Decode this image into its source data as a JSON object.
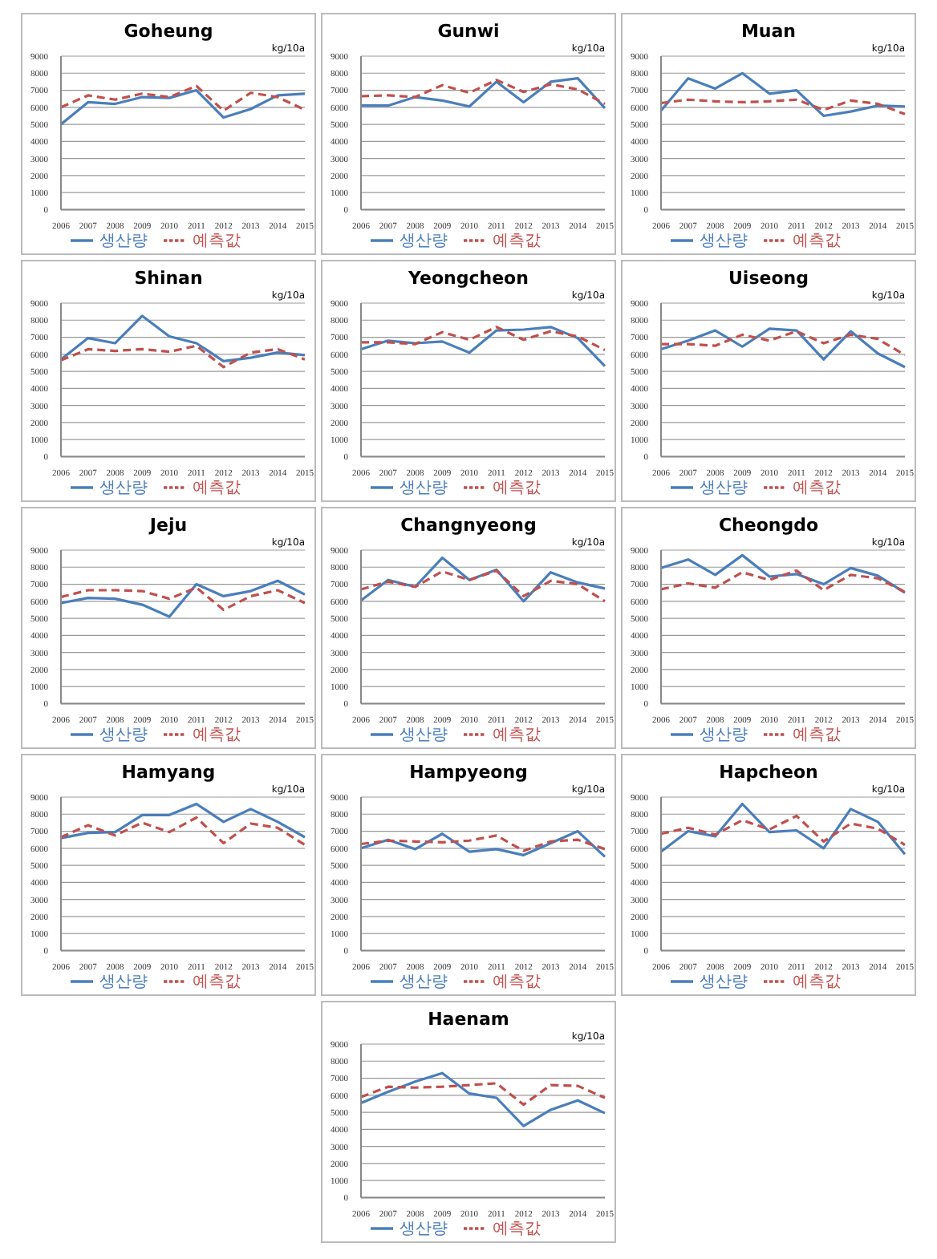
{
  "chart_data": [
    {
      "type": "line",
      "title": "Goheung",
      "categories": [
        "2006",
        "2007",
        "2008",
        "2009",
        "2010",
        "2011",
        "2012",
        "2013",
        "2014",
        "2015"
      ],
      "series": [
        {
          "name": "생산량",
          "color": "#4a7ebb",
          "line_style": "solid",
          "values": [
            5000,
            6300,
            6200,
            6600,
            6550,
            7000,
            5400,
            5900,
            6700,
            6800
          ]
        },
        {
          "name": "예측값",
          "color": "#c0504d",
          "line_style": "dashed",
          "values": [
            6000,
            6700,
            6450,
            6800,
            6600,
            7250,
            5800,
            6850,
            6600,
            5850
          ]
        }
      ],
      "annotations": [
        "kg/10a"
      ],
      "ylim": [
        0,
        9000
      ],
      "yticks": [
        0,
        1000,
        2000,
        3000,
        4000,
        5000,
        6000,
        7000,
        8000,
        9000
      ],
      "grid": "y",
      "legend": "bottom"
    },
    {
      "type": "line",
      "title": "Gunwi",
      "categories": [
        "2006",
        "2007",
        "2008",
        "2009",
        "2010",
        "2011",
        "2012",
        "2013",
        "2014",
        "2015"
      ],
      "series": [
        {
          "name": "생산량",
          "color": "#4a7ebb",
          "line_style": "solid",
          "values": [
            6100,
            6100,
            6600,
            6400,
            6050,
            7500,
            6300,
            7500,
            7700,
            5950
          ]
        },
        {
          "name": "예측값",
          "color": "#c0504d",
          "line_style": "dashed",
          "values": [
            6650,
            6700,
            6600,
            7300,
            6850,
            7600,
            6900,
            7350,
            7050,
            6200
          ]
        }
      ],
      "annotations": [
        "kg/10a"
      ],
      "ylim": [
        0,
        9000
      ],
      "yticks": [
        0,
        1000,
        2000,
        3000,
        4000,
        5000,
        6000,
        7000,
        8000,
        9000
      ],
      "grid": "y",
      "legend": "bottom"
    },
    {
      "type": "line",
      "title": "Muan",
      "categories": [
        "2006",
        "2007",
        "2008",
        "2009",
        "2010",
        "2011",
        "2012",
        "2013",
        "2014",
        "2015"
      ],
      "series": [
        {
          "name": "생산량",
          "color": "#4a7ebb",
          "line_style": "solid",
          "values": [
            5800,
            7700,
            7100,
            8000,
            6800,
            7000,
            5500,
            5750,
            6100,
            6050
          ]
        },
        {
          "name": "예측값",
          "color": "#c0504d",
          "line_style": "dashed",
          "values": [
            6250,
            6450,
            6350,
            6300,
            6350,
            6450,
            5850,
            6400,
            6200,
            5600
          ]
        }
      ],
      "annotations": [
        "kg/10a"
      ],
      "ylim": [
        0,
        9000
      ],
      "yticks": [
        0,
        1000,
        2000,
        3000,
        4000,
        5000,
        6000,
        7000,
        8000,
        9000
      ],
      "grid": "y",
      "legend": "bottom"
    },
    {
      "type": "line",
      "title": "Shinan",
      "categories": [
        "2006",
        "2007",
        "2008",
        "2009",
        "2010",
        "2011",
        "2012",
        "2013",
        "2014",
        "2015"
      ],
      "series": [
        {
          "name": "생산량",
          "color": "#4a7ebb",
          "line_style": "solid",
          "values": [
            5700,
            6950,
            6650,
            8250,
            7050,
            6650,
            5600,
            5800,
            6100,
            5950
          ]
        },
        {
          "name": "예측값",
          "color": "#c0504d",
          "line_style": "dashed",
          "values": [
            5650,
            6300,
            6200,
            6300,
            6150,
            6500,
            5250,
            6100,
            6300,
            5700
          ]
        }
      ],
      "annotations": [
        "kg/10a"
      ],
      "ylim": [
        0,
        9000
      ],
      "yticks": [
        0,
        1000,
        2000,
        3000,
        4000,
        5000,
        6000,
        7000,
        8000,
        9000
      ],
      "grid": "y",
      "legend": "bottom"
    },
    {
      "type": "line",
      "title": "Yeongcheon",
      "categories": [
        "2006",
        "2007",
        "2008",
        "2009",
        "2010",
        "2011",
        "2012",
        "2013",
        "2014",
        "2015"
      ],
      "series": [
        {
          "name": "생산량",
          "color": "#4a7ebb",
          "line_style": "solid",
          "values": [
            6300,
            6800,
            6650,
            6750,
            6100,
            7400,
            7450,
            7600,
            6950,
            5300
          ]
        },
        {
          "name": "예측값",
          "color": "#c0504d",
          "line_style": "dashed",
          "values": [
            6700,
            6700,
            6600,
            7300,
            6850,
            7600,
            6850,
            7350,
            7050,
            6250
          ]
        }
      ],
      "annotations": [
        "kg/10a"
      ],
      "ylim": [
        0,
        9000
      ],
      "yticks": [
        0,
        1000,
        2000,
        3000,
        4000,
        5000,
        6000,
        7000,
        8000,
        9000
      ],
      "grid": "y",
      "legend": "bottom"
    },
    {
      "type": "line",
      "title": "Uiseong",
      "categories": [
        "2006",
        "2007",
        "2008",
        "2009",
        "2010",
        "2011",
        "2012",
        "2013",
        "2014",
        "2015"
      ],
      "series": [
        {
          "name": "생산량",
          "color": "#4a7ebb",
          "line_style": "solid",
          "values": [
            6300,
            6800,
            7400,
            6450,
            7500,
            7400,
            5700,
            7350,
            6050,
            5250
          ]
        },
        {
          "name": "예측값",
          "color": "#c0504d",
          "line_style": "dashed",
          "values": [
            6600,
            6600,
            6500,
            7150,
            6800,
            7350,
            6650,
            7150,
            6900,
            5950
          ]
        }
      ],
      "annotations": [
        "kg/10a"
      ],
      "ylim": [
        0,
        9000
      ],
      "yticks": [
        0,
        1000,
        2000,
        3000,
        4000,
        5000,
        6000,
        7000,
        8000,
        9000
      ],
      "grid": "y",
      "legend": "bottom"
    },
    {
      "type": "line",
      "title": "Jeju",
      "categories": [
        "2006",
        "2007",
        "2008",
        "2009",
        "2010",
        "2011",
        "2012",
        "2013",
        "2014",
        "2015"
      ],
      "series": [
        {
          "name": "생산량",
          "color": "#4a7ebb",
          "line_style": "solid",
          "values": [
            5900,
            6200,
            6150,
            5800,
            5100,
            7000,
            6300,
            6600,
            7200,
            6400
          ]
        },
        {
          "name": "예측값",
          "color": "#c0504d",
          "line_style": "dashed",
          "values": [
            6250,
            6650,
            6650,
            6600,
            6150,
            6800,
            5500,
            6300,
            6650,
            5900
          ]
        }
      ],
      "annotations": [
        "kg/10a"
      ],
      "ylim": [
        0,
        9000
      ],
      "yticks": [
        0,
        1000,
        2000,
        3000,
        4000,
        5000,
        6000,
        7000,
        8000,
        9000
      ],
      "grid": "y",
      "legend": "bottom"
    },
    {
      "type": "line",
      "title": "Changnyeong",
      "categories": [
        "2006",
        "2007",
        "2008",
        "2009",
        "2010",
        "2011",
        "2012",
        "2013",
        "2014",
        "2015"
      ],
      "series": [
        {
          "name": "생산량",
          "color": "#4a7ebb",
          "line_style": "solid",
          "values": [
            6050,
            7250,
            6850,
            8550,
            7250,
            7850,
            6000,
            7700,
            7100,
            6750
          ]
        },
        {
          "name": "예측값",
          "color": "#c0504d",
          "line_style": "dashed",
          "values": [
            6700,
            7150,
            6850,
            7750,
            7250,
            7800,
            6300,
            7200,
            7000,
            6000
          ]
        }
      ],
      "annotations": [
        "kg/10a"
      ],
      "ylim": [
        0,
        9000
      ],
      "yticks": [
        0,
        1000,
        2000,
        3000,
        4000,
        5000,
        6000,
        7000,
        8000,
        9000
      ],
      "grid": "y",
      "legend": "bottom"
    },
    {
      "type": "line",
      "title": "Cheongdo",
      "categories": [
        "2006",
        "2007",
        "2008",
        "2009",
        "2010",
        "2011",
        "2012",
        "2013",
        "2014",
        "2015"
      ],
      "series": [
        {
          "name": "생산량",
          "color": "#4a7ebb",
          "line_style": "solid",
          "values": [
            7950,
            8450,
            7550,
            8700,
            7450,
            7600,
            7000,
            7950,
            7500,
            6500
          ]
        },
        {
          "name": "예측값",
          "color": "#c0504d",
          "line_style": "dashed",
          "values": [
            6700,
            7050,
            6800,
            7700,
            7250,
            7800,
            6650,
            7550,
            7350,
            6550
          ]
        }
      ],
      "annotations": [
        "kg/10a"
      ],
      "ylim": [
        0,
        9000
      ],
      "yticks": [
        0,
        1000,
        2000,
        3000,
        4000,
        5000,
        6000,
        7000,
        8000,
        9000
      ],
      "grid": "y",
      "legend": "bottom"
    },
    {
      "type": "line",
      "title": "Hamyang",
      "categories": [
        "2006",
        "2007",
        "2008",
        "2009",
        "2010",
        "2011",
        "2012",
        "2013",
        "2014",
        "2015"
      ],
      "series": [
        {
          "name": "생산량",
          "color": "#4a7ebb",
          "line_style": "solid",
          "values": [
            6600,
            6900,
            6950,
            7950,
            7950,
            8600,
            7550,
            8300,
            7550,
            6650
          ]
        },
        {
          "name": "예측값",
          "color": "#c0504d",
          "line_style": "dashed",
          "values": [
            6650,
            7350,
            6750,
            7500,
            6950,
            7800,
            6300,
            7450,
            7200,
            6200
          ]
        }
      ],
      "annotations": [
        "kg/10a"
      ],
      "ylim": [
        0,
        9000
      ],
      "yticks": [
        0,
        1000,
        2000,
        3000,
        4000,
        5000,
        6000,
        7000,
        8000,
        9000
      ],
      "grid": "y",
      "legend": "bottom"
    },
    {
      "type": "line",
      "title": "Hampyeong",
      "categories": [
        "2006",
        "2007",
        "2008",
        "2009",
        "2010",
        "2011",
        "2012",
        "2013",
        "2014",
        "2015"
      ],
      "series": [
        {
          "name": "생산량",
          "color": "#4a7ebb",
          "line_style": "solid",
          "values": [
            6000,
            6500,
            5950,
            6850,
            5800,
            5950,
            5600,
            6300,
            7000,
            5500
          ]
        },
        {
          "name": "예측값",
          "color": "#c0504d",
          "line_style": "dashed",
          "values": [
            6250,
            6450,
            6400,
            6350,
            6450,
            6750,
            5850,
            6400,
            6500,
            5950
          ]
        }
      ],
      "annotations": [
        "kg/10a"
      ],
      "ylim": [
        0,
        9000
      ],
      "yticks": [
        0,
        1000,
        2000,
        3000,
        4000,
        5000,
        6000,
        7000,
        8000,
        9000
      ],
      "grid": "y",
      "legend": "bottom"
    },
    {
      "type": "line",
      "title": "Hapcheon",
      "categories": [
        "2006",
        "2007",
        "2008",
        "2009",
        "2010",
        "2011",
        "2012",
        "2013",
        "2014",
        "2015"
      ],
      "series": [
        {
          "name": "생산량",
          "color": "#4a7ebb",
          "line_style": "solid",
          "values": [
            5800,
            7000,
            6700,
            8600,
            6950,
            7050,
            6000,
            8300,
            7550,
            5650
          ]
        },
        {
          "name": "예측값",
          "color": "#c0504d",
          "line_style": "dashed",
          "values": [
            6850,
            7200,
            6800,
            7650,
            7100,
            7900,
            6400,
            7450,
            7150,
            6200
          ]
        }
      ],
      "annotations": [
        "kg/10a"
      ],
      "ylim": [
        0,
        9000
      ],
      "yticks": [
        0,
        1000,
        2000,
        3000,
        4000,
        5000,
        6000,
        7000,
        8000,
        9000
      ],
      "grid": "y",
      "legend": "bottom"
    },
    {
      "type": "line",
      "title": "Haenam",
      "categories": [
        "2006",
        "2007",
        "2008",
        "2009",
        "2010",
        "2011",
        "2012",
        "2013",
        "2014",
        "2015"
      ],
      "series": [
        {
          "name": "생산량",
          "color": "#4a7ebb",
          "line_style": "solid",
          "values": [
            5550,
            6200,
            6800,
            7300,
            6100,
            5850,
            4200,
            5150,
            5700,
            4950
          ]
        },
        {
          "name": "예측값",
          "color": "#c0504d",
          "line_style": "dashed",
          "values": [
            5900,
            6500,
            6450,
            6500,
            6600,
            6700,
            5450,
            6600,
            6550,
            5850
          ]
        }
      ],
      "annotations": [
        "kg/10a"
      ],
      "ylim": [
        0,
        9000
      ],
      "yticks": [
        0,
        1000,
        2000,
        3000,
        4000,
        5000,
        6000,
        7000,
        8000,
        9000
      ],
      "grid": "y",
      "legend": "bottom"
    }
  ]
}
